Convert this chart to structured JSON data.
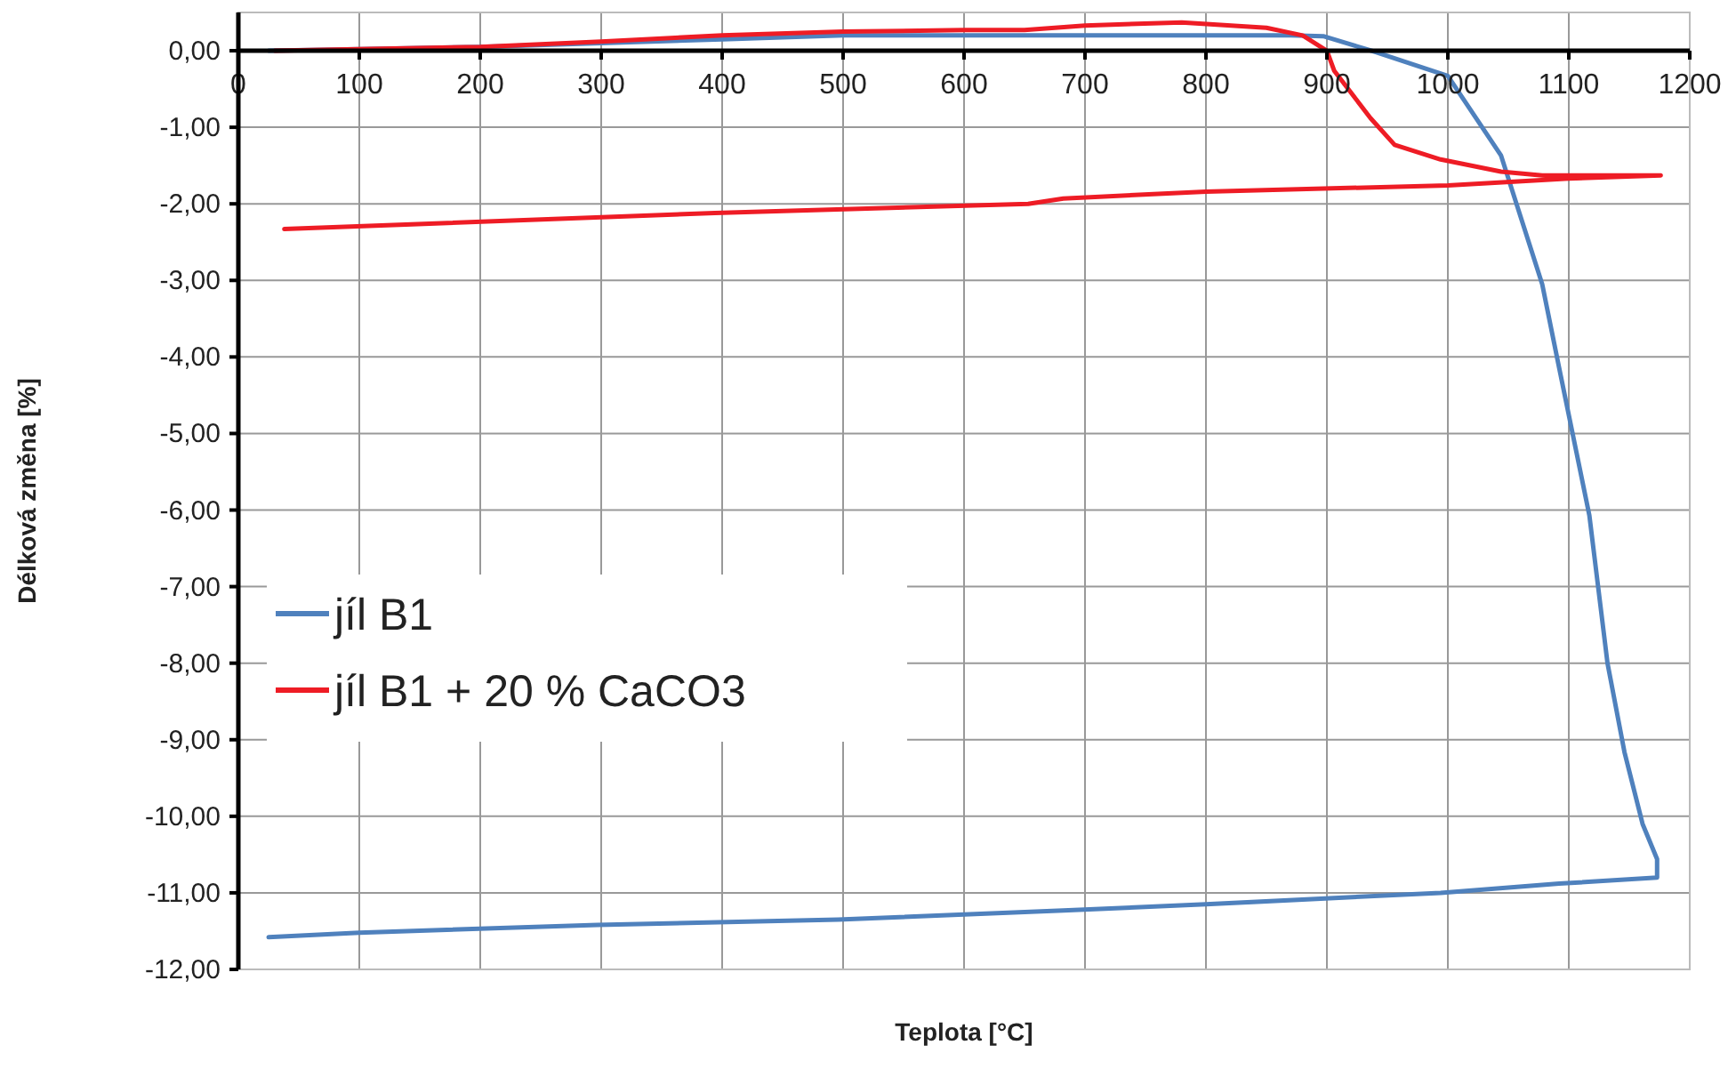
{
  "chart_data": {
    "type": "line",
    "xlabel": "Teplota [°C]",
    "ylabel": "Délková změna [%]",
    "xlim": [
      0,
      1200
    ],
    "xticks": [
      0,
      100,
      200,
      300,
      400,
      500,
      600,
      700,
      800,
      900,
      1000,
      1100,
      1200
    ],
    "ylim": [
      -12,
      0.5
    ],
    "yticks": [
      {
        "value": 0,
        "label": "0,00"
      },
      {
        "value": -1,
        "label": "-1,00"
      },
      {
        "value": -2,
        "label": "-2,00"
      },
      {
        "value": -3,
        "label": "-3,00"
      },
      {
        "value": -4,
        "label": "-4,00"
      },
      {
        "value": -5,
        "label": "-5,00"
      },
      {
        "value": -6,
        "label": "-6,00"
      },
      {
        "value": -7,
        "label": "-7,00"
      },
      {
        "value": -8,
        "label": "-8,00"
      },
      {
        "value": -9,
        "label": "-9,00"
      },
      {
        "value": -10,
        "label": "-10,00"
      },
      {
        "value": -11,
        "label": "-11,00"
      },
      {
        "value": -12,
        "label": "-12,00"
      }
    ],
    "grid": true,
    "legend": "left",
    "line_style": "solid",
    "marker": "none",
    "series": [
      {
        "name": "jíl B1",
        "color": "#4f81bd",
        "x": [
          25,
          100,
          200,
          300,
          400,
          500,
          600,
          700,
          800,
          870,
          897,
          941,
          1000,
          1044,
          1078,
          1092,
          1117,
          1132,
          1146,
          1161,
          1173,
          1173,
          1092,
          994,
          800,
          682,
          496,
          297,
          100,
          25
        ],
        "values": [
          0,
          0.02,
          0.05,
          0.1,
          0.15,
          0.2,
          0.2,
          0.2,
          0.2,
          0.2,
          0.19,
          -0.02,
          -0.33,
          -1.37,
          -3.05,
          -4.14,
          -6.07,
          -8.0,
          -9.16,
          -10.1,
          -10.56,
          -10.8,
          -10.88,
          -11.0,
          -11.15,
          -11.23,
          -11.35,
          -11.42,
          -11.52,
          -11.58
        ]
      },
      {
        "name": "jíl B1 + 20 % CaCO3",
        "color": "#ee1c25",
        "x": [
          30,
          200,
          300,
          400,
          500,
          600,
          650,
          700,
          780,
          850,
          880,
          900,
          906,
          936,
          956,
          994,
          1044,
          1078,
          1176,
          1100,
          1000,
          800,
          682,
          653,
          394,
          38
        ],
        "values": [
          0,
          0.05,
          0.12,
          0.2,
          0.25,
          0.27,
          0.27,
          0.33,
          0.37,
          0.3,
          0.2,
          0,
          -0.26,
          -0.88,
          -1.23,
          -1.42,
          -1.58,
          -1.63,
          -1.63,
          -1.67,
          -1.76,
          -1.84,
          -1.93,
          -2.0,
          -2.12,
          -2.33
        ]
      }
    ]
  }
}
